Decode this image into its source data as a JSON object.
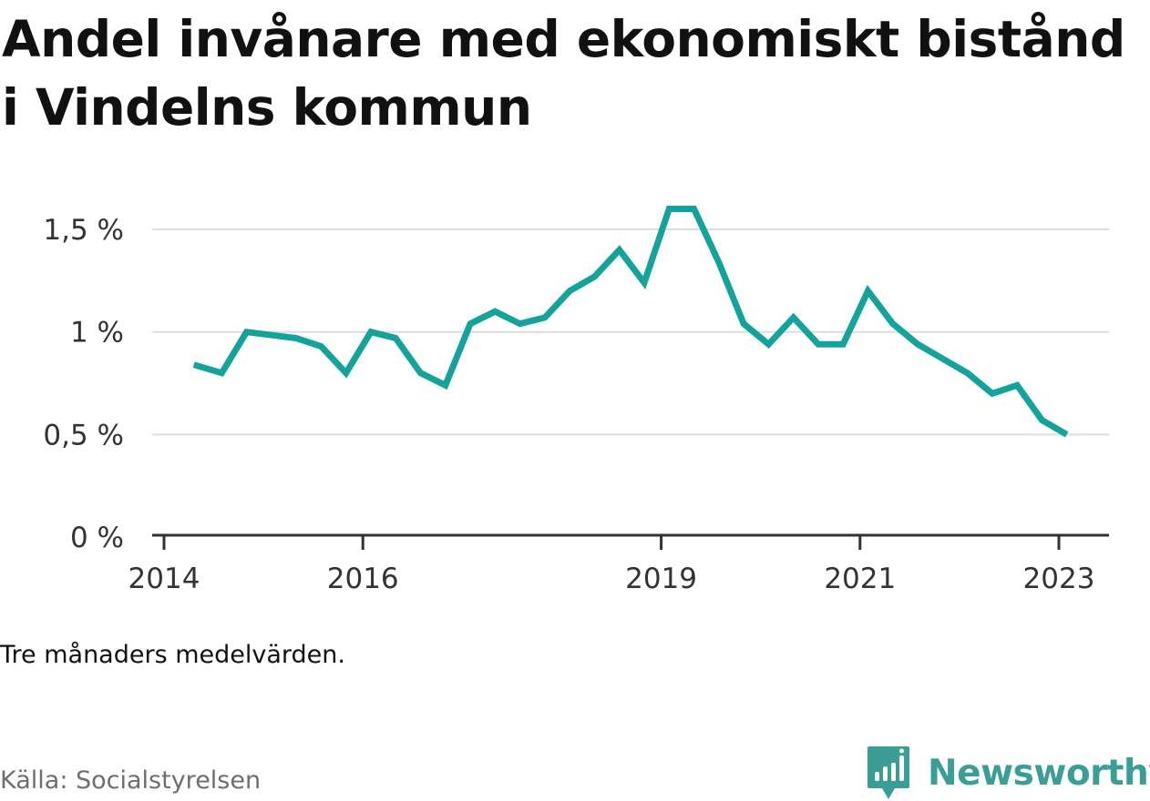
{
  "title": "Andel invånare med ekonomiskt bistånd i Vindelns kommun",
  "note": "Tre månaders medelvärden.",
  "source": "Källa: Socialstyrelsen",
  "brand": {
    "name": "Newsworthy",
    "icon": "newsworthy-logo-icon",
    "color": "#3a9d96"
  },
  "colors": {
    "line": "#14a39a",
    "grid": "#dddddd",
    "axis": "#333333"
  },
  "chart_data": {
    "type": "line",
    "title": "Andel invånare med ekonomiskt bistånd i Vindelns kommun",
    "xlabel": "",
    "ylabel": "",
    "ylim": [
      0,
      1.6
    ],
    "grid": true,
    "y_ticks": [
      {
        "value": 0,
        "label": "0 %"
      },
      {
        "value": 0.5,
        "label": "0,5 %"
      },
      {
        "value": 1,
        "label": "1 %"
      },
      {
        "value": 1.5,
        "label": "1,5 %"
      }
    ],
    "x_ticks": [
      {
        "value": 2014.0,
        "label": "2014"
      },
      {
        "value": 2016.0,
        "label": "2016"
      },
      {
        "value": 2019.0,
        "label": "2019"
      },
      {
        "value": 2021.0,
        "label": "2021"
      },
      {
        "value": 2023.0,
        "label": "2023"
      }
    ],
    "series": [
      {
        "x": [
          2014.3,
          2014.58,
          2014.83,
          2015.33,
          2015.58,
          2015.83,
          2016.08,
          2016.33,
          2016.58,
          2016.83,
          2017.08,
          2017.33,
          2017.58,
          2017.83,
          2018.08,
          2018.33,
          2018.58,
          2018.83,
          2019.08,
          2019.33,
          2019.58,
          2019.83,
          2020.08,
          2020.33,
          2020.58,
          2020.83,
          2021.08,
          2021.33,
          2021.58,
          2021.83,
          2022.08,
          2022.33,
          2022.58,
          2022.83,
          2023.08
        ],
        "values": [
          0.84,
          0.8,
          1.0,
          0.97,
          0.93,
          0.8,
          1.0,
          0.97,
          0.8,
          0.74,
          1.04,
          1.1,
          1.04,
          1.07,
          1.2,
          1.27,
          1.4,
          1.24,
          1.6,
          1.6,
          1.34,
          1.04,
          0.94,
          1.07,
          0.94,
          0.94,
          1.2,
          1.04,
          0.94,
          0.87,
          0.8,
          0.7,
          0.74,
          0.57,
          0.5
        ]
      }
    ]
  }
}
